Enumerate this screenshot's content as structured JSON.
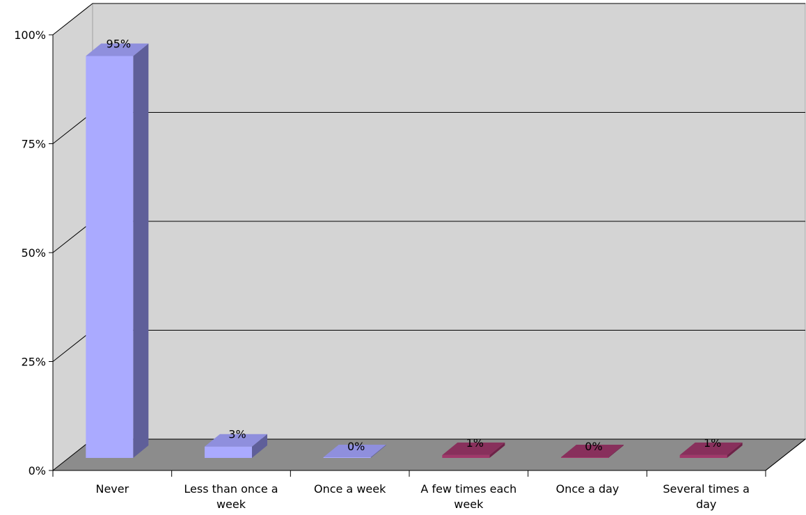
{
  "chart_data": {
    "type": "bar",
    "categories": [
      "Never",
      "Less than once a week",
      "Once a week",
      "A few times each week",
      "Once a day",
      "Several times a day"
    ],
    "category_lines": [
      [
        "Never"
      ],
      [
        "Less than once a",
        "week"
      ],
      [
        "Once a week"
      ],
      [
        "A few times each",
        "week"
      ],
      [
        "Once a day"
      ],
      [
        "Several times a",
        "day"
      ]
    ],
    "values": [
      95,
      3,
      0,
      1,
      0,
      1
    ],
    "value_labels": [
      "95%",
      "3%",
      "0%",
      "1%",
      "0%",
      "1%"
    ],
    "ylim": [
      0,
      100
    ],
    "yticks": [
      0,
      25,
      50,
      75,
      100
    ],
    "ytick_labels": [
      "0%",
      "25%",
      "50%",
      "75%",
      "100%"
    ],
    "three_d": true,
    "grid": true,
    "colors": {
      "wall": "#d4d4d4",
      "floor": "#8c8c8c",
      "bar_blue": {
        "front": "#aaaaff",
        "side": "#5f5f99",
        "top": "#8f8fdd"
      },
      "bar_red": {
        "front": "#a0386a",
        "side": "#6e2248",
        "top": "#88305c"
      },
      "bar_color_by_index": [
        "bar_blue",
        "bar_blue",
        "bar_blue",
        "bar_red",
        "bar_red",
        "bar_red"
      ]
    }
  }
}
